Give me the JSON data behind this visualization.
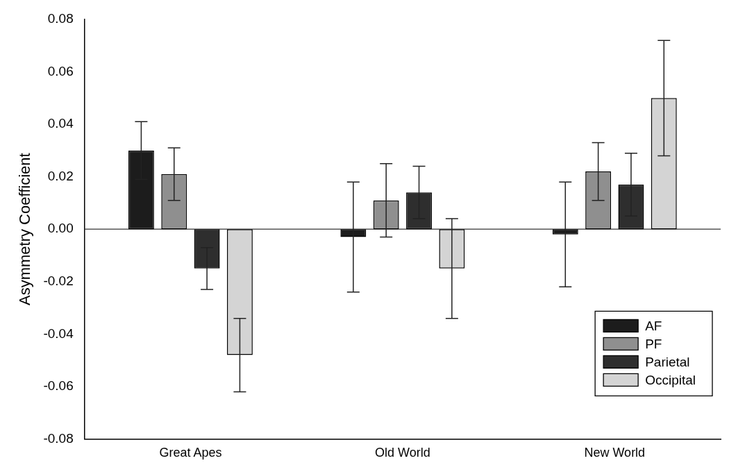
{
  "chart_data": {
    "type": "bar",
    "ylabel": "Asymmetry Coefficient",
    "categories": [
      "Great Apes",
      "Old World",
      "New World"
    ],
    "series": [
      {
        "name": "AF",
        "color": "#1c1c1c",
        "values": [
          0.03,
          -0.003,
          -0.002
        ],
        "errors": [
          0.011,
          0.021,
          0.02
        ]
      },
      {
        "name": "PF",
        "color": "#8f8f8f",
        "values": [
          0.021,
          0.011,
          0.022
        ],
        "errors": [
          0.01,
          0.014,
          0.011
        ]
      },
      {
        "name": "Parietal",
        "color": "#2e2e2e",
        "values": [
          -0.015,
          0.014,
          0.017
        ],
        "errors": [
          0.008,
          0.01,
          0.012
        ]
      },
      {
        "name": "Occipital",
        "color": "#d4d4d4",
        "values": [
          -0.048,
          -0.015,
          0.05
        ],
        "errors": [
          0.014,
          0.019,
          0.022
        ]
      }
    ],
    "ylim": [
      -0.08,
      0.08
    ],
    "yticks": [
      {
        "value": -0.08,
        "label": "-0.08"
      },
      {
        "value": -0.06,
        "label": "-0.06"
      },
      {
        "value": -0.04,
        "label": "-0.04"
      },
      {
        "value": -0.02,
        "label": "-0.02"
      },
      {
        "value": 0,
        "label": "0.00"
      },
      {
        "value": 0.02,
        "label": "0.02"
      },
      {
        "value": 0.04,
        "label": "0.04"
      },
      {
        "value": 0.06,
        "label": "0.06"
      },
      {
        "value": 0.08,
        "label": "0.08"
      }
    ],
    "ref_lines": [
      {
        "axis": "y",
        "value": 0
      }
    ],
    "grid": false,
    "legend": "bottom right"
  }
}
